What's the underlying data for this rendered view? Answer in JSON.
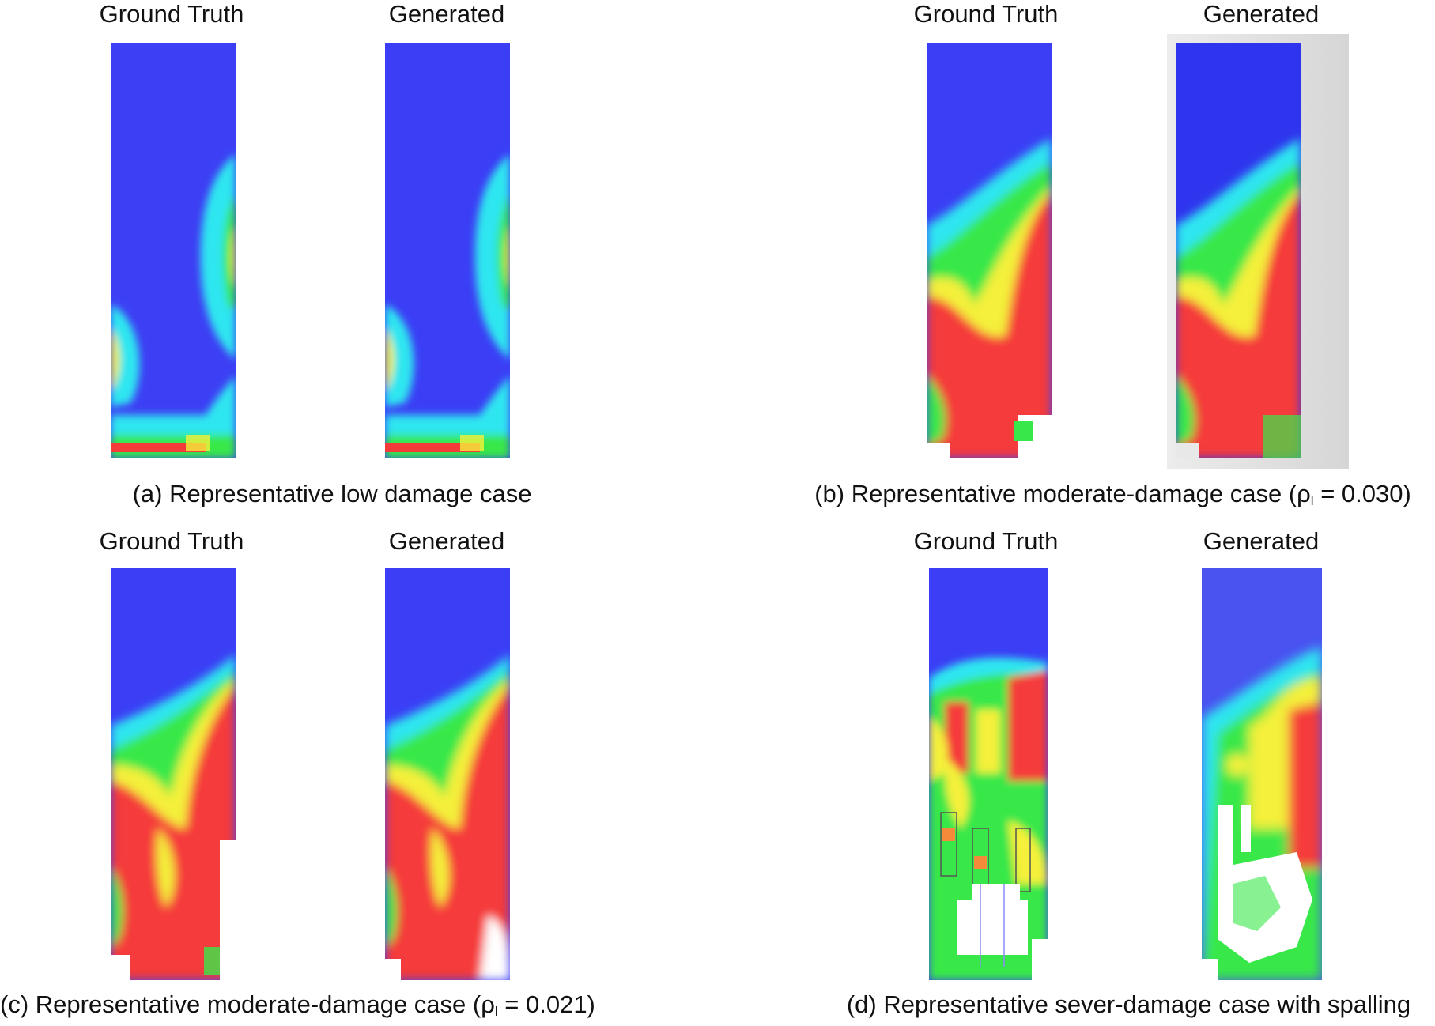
{
  "panels": [
    {
      "id": "a",
      "gt_label": "Ground Truth",
      "gen_label": "Generated",
      "caption": "(a) Representative low damage case",
      "rho_prefix": "",
      "rho_symbol": "",
      "rho_sub": "",
      "rho_value": ""
    },
    {
      "id": "b",
      "gt_label": "Ground Truth",
      "gen_label": "Generated",
      "caption": "(b) Representative moderate-damage case (",
      "rho_prefix": "",
      "rho_symbol": "ρ",
      "rho_sub": "l",
      "rho_value": " = 0.030)"
    },
    {
      "id": "c",
      "gt_label": "Ground Truth",
      "gen_label": "Generated",
      "caption": "(c) Representative moderate-damage case (",
      "rho_prefix": "",
      "rho_symbol": "ρ",
      "rho_sub": "l",
      "rho_value": " = 0.021)"
    },
    {
      "id": "d",
      "gt_label": "Ground Truth",
      "gen_label": "Generated",
      "caption": "(d) Representative sever-damage case with spalling",
      "rho_prefix": "",
      "rho_symbol": "",
      "rho_sub": "",
      "rho_value": ""
    }
  ],
  "colors": {
    "blue": "#3b3ef5",
    "cyan": "#2fe6f0",
    "green": "#38e84a",
    "yellow": "#f4f03a",
    "red": "#f53a3a",
    "white": "#ffffff"
  }
}
